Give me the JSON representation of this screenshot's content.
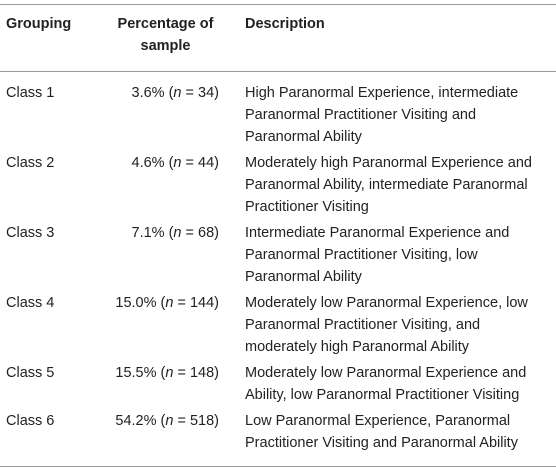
{
  "headers": {
    "grouping": "Grouping",
    "percentage": "Percentage of sample",
    "description": "Description"
  },
  "rows": [
    {
      "group": "Class 1",
      "pct": "3.6%",
      "n_label": "n",
      "n_value": "= 34)",
      "description": "High Paranormal Experience, intermediate Paranormal Practitioner Visiting and Paranormal Ability"
    },
    {
      "group": "Class 2",
      "pct": "4.6%",
      "n_label": "n",
      "n_value": "= 44)",
      "description": "Moderately high Paranormal Experience and Paranormal Ability, intermediate Paranormal Practitioner Visiting"
    },
    {
      "group": "Class 3",
      "pct": "7.1%",
      "n_label": "n",
      "n_value": "= 68)",
      "description": "Intermediate Paranormal Experience and Paranormal Practitioner Visiting, low Paranormal Ability"
    },
    {
      "group": "Class 4",
      "pct": "15.0%",
      "n_label": "n",
      "n_value": "= 144)",
      "description": "Moderately low Paranormal Experience, low Paranormal Practitioner Visiting, and moderately high Paranormal Ability"
    },
    {
      "group": "Class 5",
      "pct": "15.5%",
      "n_label": "n",
      "n_value": "= 148)",
      "description": "Moderately low Paranormal Experience and Ability, low Paranormal Practitioner Visiting"
    },
    {
      "group": "Class 6",
      "pct": "54.2%",
      "n_label": "n",
      "n_value": "= 518)",
      "description": "Low Paranormal Experience, Paranormal Practitioner Visiting and Paranormal Ability"
    }
  ]
}
